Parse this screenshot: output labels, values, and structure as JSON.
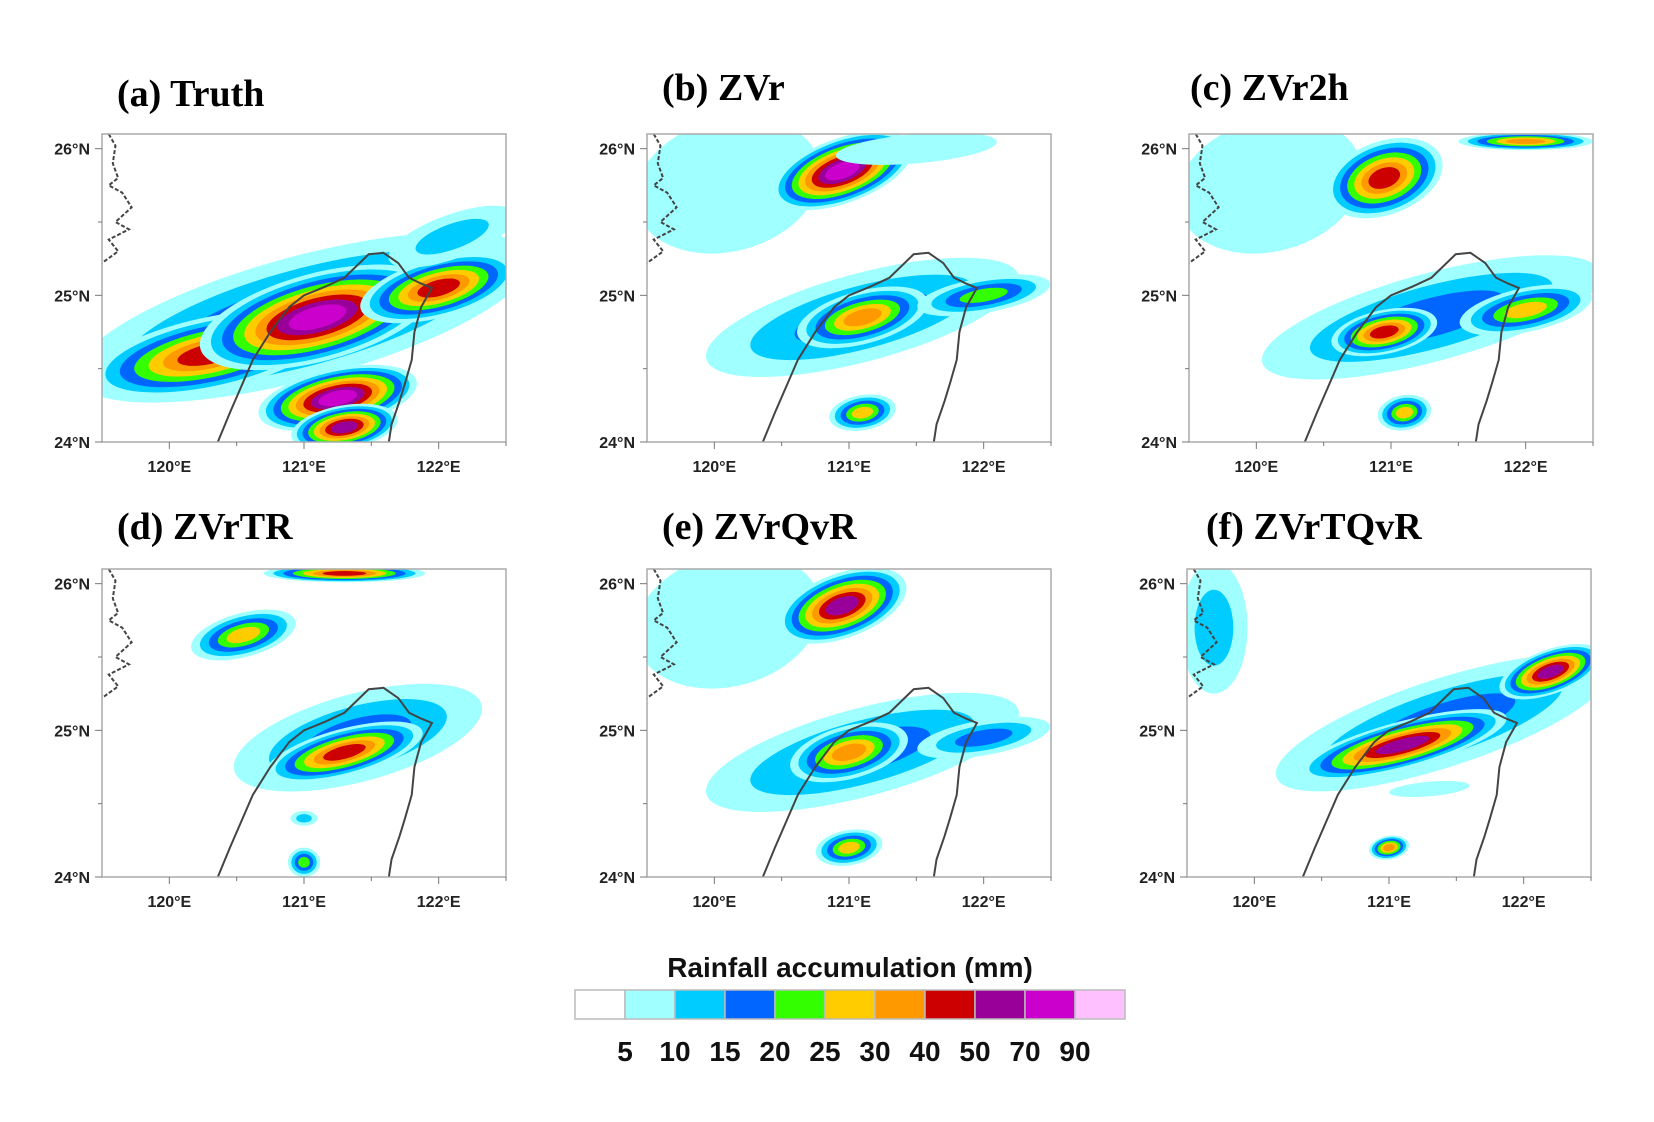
{
  "panels": [
    {
      "title": "(a) Truth"
    },
    {
      "title": "(b) ZVr"
    },
    {
      "title": "(c) ZVr2h"
    },
    {
      "title": "(d) ZVrTR"
    },
    {
      "title": "(e) ZVrQvR"
    },
    {
      "title": "(f) ZVrTQvR"
    }
  ],
  "axes": {
    "lat_ticks": [
      24,
      25,
      26
    ],
    "lon_ticks": [
      120,
      121,
      122
    ],
    "lat_labels": [
      "24°N",
      "25°N",
      "26°N"
    ],
    "lon_labels": [
      "120°E",
      "121°E",
      "122°E"
    ],
    "lon_range": [
      119.5,
      122.5
    ],
    "lat_range": [
      24.0,
      26.1
    ]
  },
  "colorbar": {
    "title": "Rainfall accumulation  (mm)",
    "levels": [
      "5",
      "10",
      "15",
      "20",
      "25",
      "30",
      "40",
      "50",
      "70",
      "90"
    ],
    "colors": [
      "#ffffff",
      "#a0ffff",
      "#00ccff",
      "#0066ff",
      "#33ff00",
      "#ffcc00",
      "#ff9900",
      "#cc0000",
      "#990099",
      "#cc00cc",
      "#ffc0ff"
    ]
  }
}
